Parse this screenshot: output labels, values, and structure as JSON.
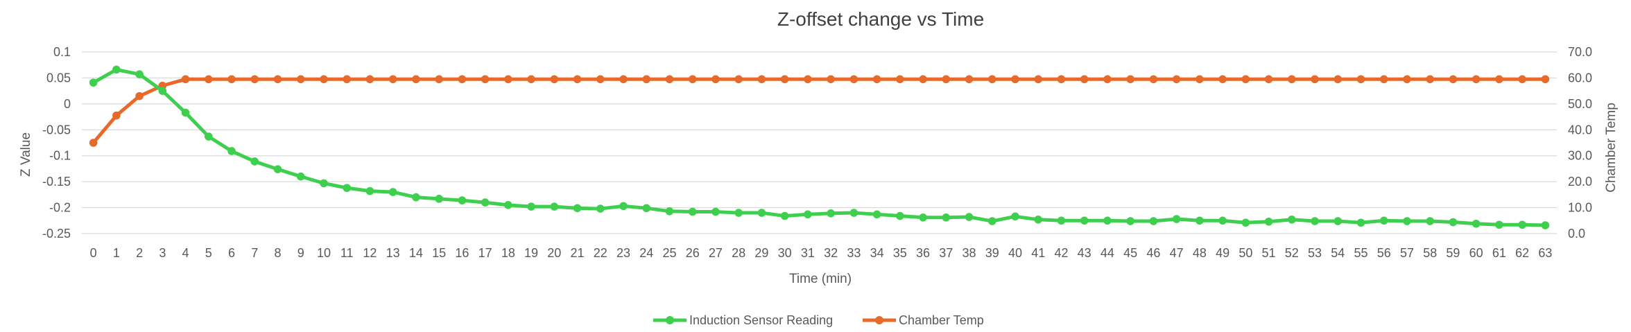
{
  "chart_data": {
    "type": "line",
    "title": "Z-offset change vs Time",
    "xlabel": "Time (min)",
    "ylabel": "Z Value",
    "y2label": "Chamber Temp",
    "x": [
      0,
      1,
      2,
      3,
      4,
      5,
      6,
      7,
      8,
      9,
      10,
      11,
      12,
      13,
      14,
      15,
      16,
      17,
      18,
      19,
      20,
      21,
      22,
      23,
      24,
      25,
      26,
      27,
      28,
      29,
      30,
      31,
      32,
      33,
      34,
      35,
      36,
      37,
      38,
      39,
      40,
      41,
      42,
      43,
      44,
      45,
      46,
      47,
      48,
      49,
      50,
      51,
      52,
      53,
      54,
      55,
      56,
      57,
      58,
      59,
      60,
      61,
      62,
      63
    ],
    "ylim": [
      -0.25,
      0.1
    ],
    "yticks": [
      "0.1",
      "0.05",
      "0",
      "-0.05",
      "-0.1",
      "-0.15",
      "-0.2",
      "-0.25"
    ],
    "y2lim": [
      0,
      70
    ],
    "y2ticks": [
      "70.0",
      "60.0",
      "50.0",
      "40.0",
      "30.0",
      "20.0",
      "10.0",
      "0.0"
    ],
    "grid": true,
    "legend_position": "bottom",
    "series": [
      {
        "name": "Induction Sensor Reading",
        "axis": "left",
        "color": "#3fcf4f",
        "values": [
          0.041,
          0.066,
          0.057,
          0.025,
          -0.017,
          -0.063,
          -0.091,
          -0.111,
          -0.126,
          -0.14,
          -0.153,
          -0.162,
          -0.168,
          -0.17,
          -0.18,
          -0.183,
          -0.186,
          -0.19,
          -0.195,
          -0.198,
          -0.198,
          -0.201,
          -0.202,
          -0.197,
          -0.201,
          -0.207,
          -0.208,
          -0.208,
          -0.21,
          -0.21,
          -0.216,
          -0.213,
          -0.211,
          -0.21,
          -0.213,
          -0.216,
          -0.219,
          -0.219,
          -0.218,
          -0.226,
          -0.217,
          -0.223,
          -0.225,
          -0.225,
          -0.225,
          -0.226,
          -0.226,
          -0.222,
          -0.225,
          -0.225,
          -0.229,
          -0.227,
          -0.223,
          -0.226,
          -0.226,
          -0.229,
          -0.225,
          -0.226,
          -0.226,
          -0.228,
          -0.231,
          -0.233,
          -0.233,
          -0.234
        ]
      },
      {
        "name": "Chamber Temp",
        "axis": "right",
        "color": "#e86a2a",
        "values": [
          35.0,
          45.5,
          53.0,
          57.0,
          59.5,
          59.5,
          59.5,
          59.5,
          59.5,
          59.5,
          59.5,
          59.5,
          59.5,
          59.5,
          59.5,
          59.5,
          59.5,
          59.5,
          59.5,
          59.5,
          59.5,
          59.5,
          59.5,
          59.5,
          59.5,
          59.5,
          59.5,
          59.5,
          59.5,
          59.5,
          59.5,
          59.5,
          59.5,
          59.5,
          59.5,
          59.5,
          59.5,
          59.5,
          59.5,
          59.5,
          59.5,
          59.5,
          59.5,
          59.5,
          59.5,
          59.5,
          59.5,
          59.5,
          59.5,
          59.5,
          59.5,
          59.5,
          59.5,
          59.5,
          59.5,
          59.5,
          59.5,
          59.5,
          59.5,
          59.5,
          59.5,
          59.5,
          59.5,
          59.5
        ]
      }
    ]
  }
}
